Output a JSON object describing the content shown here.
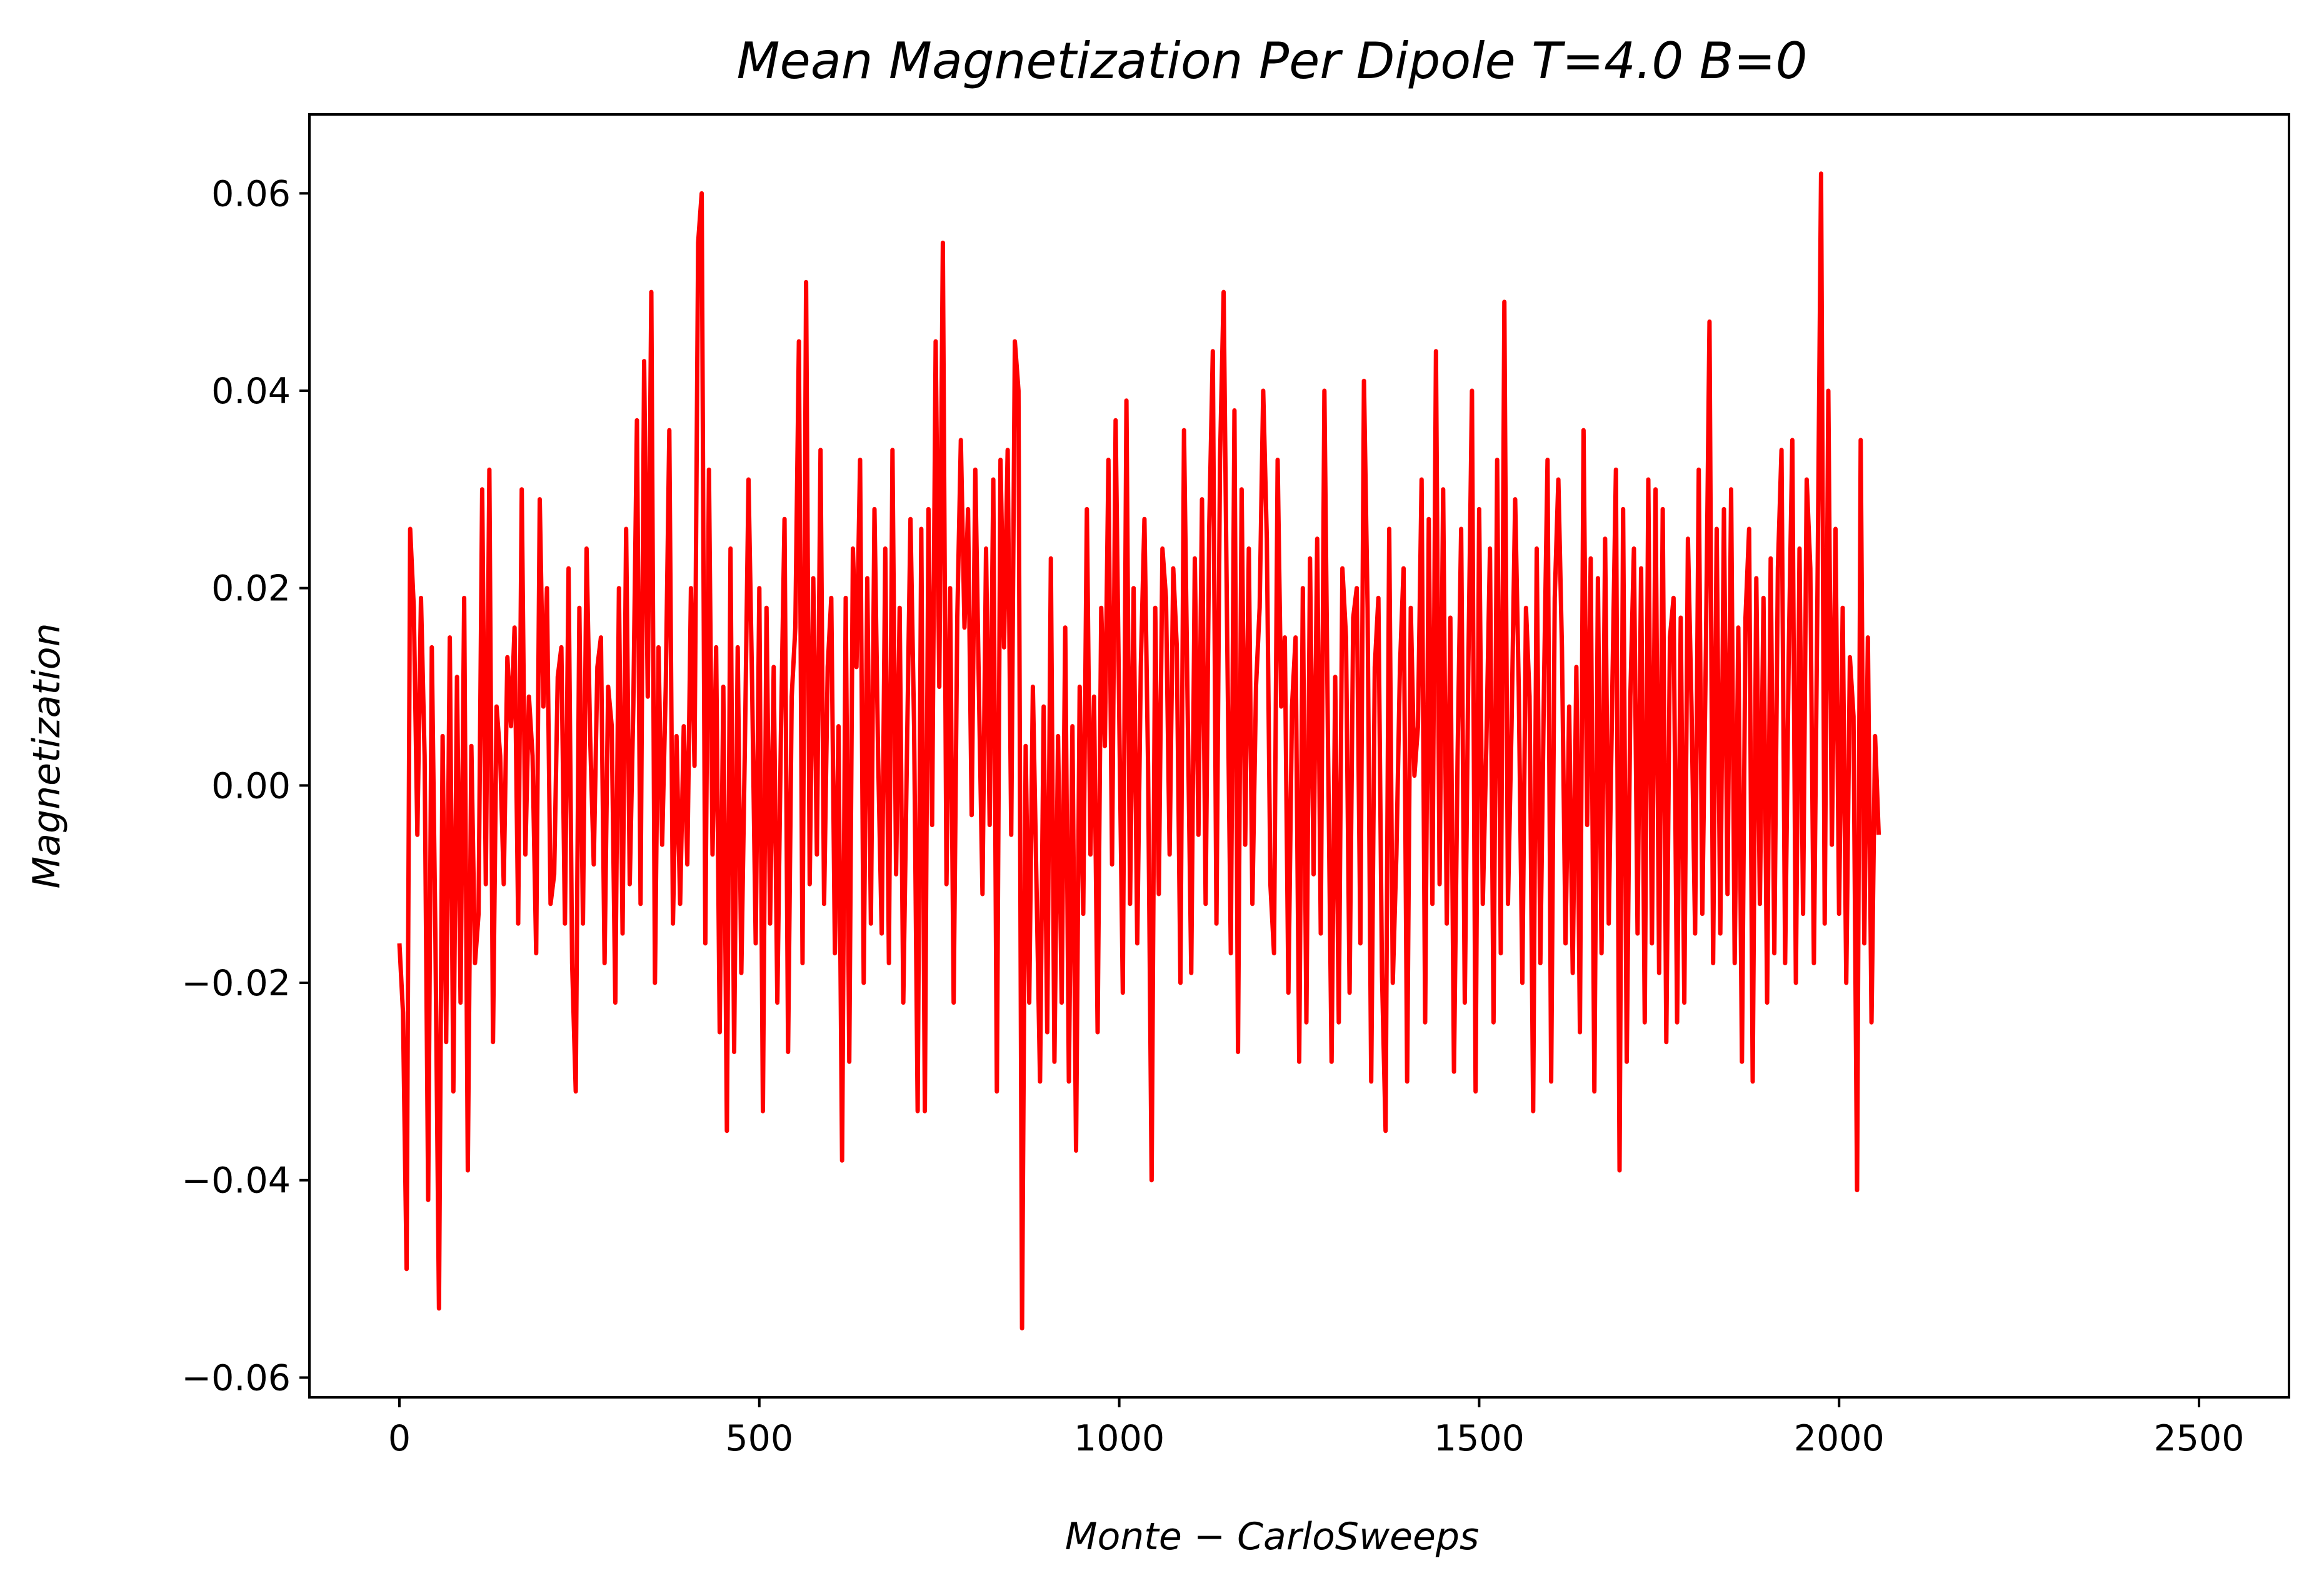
{
  "chart_data": {
    "type": "line",
    "title": "Mean Magnetization Per Dipole T=4.0 B=0",
    "xlabel": "Monte − CarloSweeps",
    "ylabel": "Magnetization",
    "xlim": [
      -125,
      2625
    ],
    "ylim": [
      -0.062,
      0.068
    ],
    "xticks": [
      0,
      500,
      1000,
      1500,
      2000,
      2500
    ],
    "xtick_labels": [
      "0",
      "500",
      "1000",
      "1500",
      "2000",
      "2500"
    ],
    "yticks": [
      -0.06,
      -0.04,
      -0.02,
      0.0,
      0.02,
      0.04,
      0.06
    ],
    "ytick_labels": [
      "−0.06",
      "−0.04",
      "−0.02",
      "0.00",
      "0.02",
      "0.04",
      "0.06"
    ],
    "grid": false,
    "series": [
      {
        "color": "#ff0000",
        "x_start": 0,
        "x_step": 5,
        "values": [
          -0.016,
          -0.023,
          -0.049,
          0.026,
          0.018,
          -0.005,
          0.019,
          0.003,
          -0.042,
          0.014,
          -0.015,
          -0.053,
          0.005,
          -0.026,
          0.015,
          -0.031,
          0.011,
          -0.022,
          0.019,
          -0.039,
          0.004,
          -0.018,
          -0.013,
          0.03,
          -0.01,
          0.032,
          -0.026,
          0.008,
          0.003,
          -0.01,
          0.013,
          0.006,
          0.016,
          -0.014,
          0.03,
          -0.007,
          0.009,
          0.003,
          -0.017,
          0.029,
          0.008,
          0.02,
          -0.012,
          -0.009,
          0.011,
          0.014,
          -0.014,
          0.022,
          -0.018,
          -0.031,
          0.018,
          -0.014,
          0.024,
          0.005,
          -0.008,
          0.012,
          0.015,
          -0.018,
          0.01,
          0.006,
          -0.022,
          0.02,
          -0.015,
          0.026,
          -0.01,
          0.008,
          0.037,
          -0.012,
          0.043,
          0.009,
          0.05,
          -0.02,
          0.014,
          -0.006,
          0.01,
          0.036,
          -0.014,
          0.005,
          -0.012,
          0.006,
          -0.008,
          0.02,
          0.002,
          0.055,
          0.06,
          -0.016,
          0.032,
          -0.007,
          0.014,
          -0.025,
          0.01,
          -0.035,
          0.024,
          -0.027,
          0.014,
          -0.019,
          0.004,
          0.031,
          0.01,
          -0.016,
          0.02,
          -0.033,
          0.018,
          -0.014,
          0.012,
          -0.022,
          0.005,
          0.027,
          -0.027,
          0.009,
          0.016,
          0.045,
          -0.018,
          0.051,
          -0.01,
          0.021,
          -0.007,
          0.034,
          -0.012,
          0.012,
          0.019,
          -0.017,
          0.006,
          -0.038,
          0.019,
          -0.028,
          0.024,
          0.012,
          0.033,
          -0.02,
          0.021,
          -0.014,
          0.028,
          0.003,
          -0.015,
          0.024,
          -0.018,
          0.034,
          -0.009,
          0.018,
          -0.022,
          0.003,
          0.027,
          0.006,
          -0.033,
          0.026,
          -0.033,
          0.028,
          -0.004,
          0.045,
          0.01,
          0.055,
          -0.01,
          0.02,
          -0.022,
          0.017,
          0.035,
          0.016,
          0.028,
          -0.003,
          0.032,
          0.01,
          -0.011,
          0.024,
          -0.004,
          0.031,
          -0.031,
          0.033,
          0.014,
          0.034,
          -0.005,
          0.045,
          0.04,
          -0.055,
          0.004,
          -0.022,
          0.01,
          -0.01,
          -0.03,
          0.008,
          -0.025,
          0.023,
          -0.028,
          0.005,
          -0.022,
          0.016,
          -0.03,
          0.006,
          -0.037,
          0.01,
          -0.013,
          0.028,
          -0.007,
          0.009,
          -0.025,
          0.018,
          0.004,
          0.033,
          -0.008,
          0.037,
          0.007,
          -0.021,
          0.039,
          -0.012,
          0.02,
          -0.016,
          0.012,
          0.027,
          0.002,
          -0.04,
          0.018,
          -0.011,
          0.024,
          0.019,
          -0.007,
          0.022,
          0.014,
          -0.02,
          0.036,
          0.008,
          -0.019,
          0.023,
          -0.005,
          0.029,
          -0.012,
          0.026,
          0.044,
          -0.014,
          0.033,
          0.05,
          0.015,
          -0.017,
          0.038,
          -0.027,
          0.03,
          -0.006,
          0.024,
          -0.012,
          0.01,
          0.018,
          0.04,
          0.025,
          -0.01,
          -0.017,
          0.033,
          0.008,
          0.015,
          -0.021,
          0.008,
          0.015,
          -0.028,
          0.02,
          -0.024,
          0.023,
          -0.009,
          0.025,
          -0.015,
          0.04,
          0.004,
          -0.028,
          0.011,
          -0.024,
          0.022,
          0.015,
          -0.021,
          0.017,
          0.02,
          -0.016,
          0.041,
          0.018,
          -0.03,
          0.012,
          0.019,
          -0.019,
          -0.035,
          0.026,
          -0.02,
          -0.007,
          0.012,
          0.022,
          -0.03,
          0.018,
          0.001,
          0.006,
          0.031,
          -0.024,
          0.027,
          -0.012,
          0.044,
          -0.01,
          0.03,
          -0.014,
          0.017,
          -0.029,
          0.003,
          0.026,
          -0.022,
          0.012,
          0.04,
          -0.031,
          0.028,
          -0.012,
          0.004,
          0.024,
          -0.024,
          0.033,
          -0.017,
          0.049,
          -0.012,
          0.006,
          0.029,
          0.01,
          -0.02,
          0.018,
          0.009,
          -0.033,
          0.024,
          -0.018,
          0.01,
          0.033,
          -0.03,
          0.019,
          0.031,
          0.014,
          -0.016,
          0.008,
          -0.019,
          0.012,
          -0.025,
          0.036,
          -0.004,
          0.023,
          -0.031,
          0.021,
          -0.017,
          0.025,
          -0.014,
          0.01,
          0.032,
          -0.039,
          0.028,
          -0.028,
          0.009,
          0.024,
          -0.015,
          0.022,
          -0.024,
          0.031,
          -0.016,
          0.03,
          -0.019,
          0.028,
          -0.026,
          0.015,
          0.019,
          -0.024,
          0.017,
          -0.022,
          0.025,
          0.008,
          -0.015,
          0.032,
          -0.013,
          0.014,
          0.047,
          -0.018,
          0.026,
          -0.015,
          0.028,
          -0.011,
          0.03,
          -0.018,
          0.016,
          -0.028,
          0.017,
          0.026,
          -0.03,
          0.021,
          -0.012,
          0.019,
          -0.022,
          0.023,
          -0.017,
          0.022,
          0.034,
          -0.018,
          0.013,
          0.035,
          -0.02,
          0.024,
          -0.013,
          0.031,
          0.022,
          -0.018,
          0.02,
          0.062,
          -0.014,
          0.04,
          -0.006,
          0.026,
          -0.013,
          0.018,
          -0.02,
          0.013,
          0.007,
          -0.041,
          0.035,
          -0.016,
          0.015,
          -0.024,
          0.005,
          -0.005
        ]
      }
    ]
  }
}
